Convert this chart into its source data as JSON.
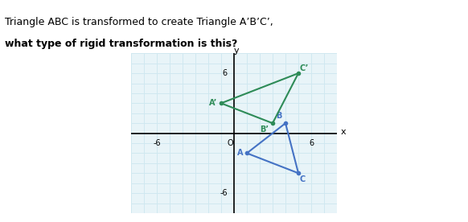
{
  "title_normal": "Triangle ABC is transformed to create Triangle A’B’C’, ",
  "title_bold": "what type of rigid transformation is this?",
  "triangle_ABC": {
    "A": [
      1,
      -2
    ],
    "B": [
      4,
      1
    ],
    "C": [
      5,
      -4
    ]
  },
  "triangle_ApBpCp": {
    "Ap": [
      -1,
      3
    ],
    "Bp": [
      3,
      1
    ],
    "Cp": [
      5,
      6
    ]
  },
  "color_ABC": "#4472C4",
  "color_ApBpCp": "#2E8B57",
  "xlim": [
    -8,
    8
  ],
  "ylim": [
    -8,
    8
  ],
  "xticks": [
    -6,
    0,
    6
  ],
  "yticks": [
    -6,
    0,
    6
  ],
  "grid_color": "#d0e8f0",
  "axis_color": "black",
  "bg_color": "#e8f4f8",
  "plot_bg": "#e8f4f8"
}
